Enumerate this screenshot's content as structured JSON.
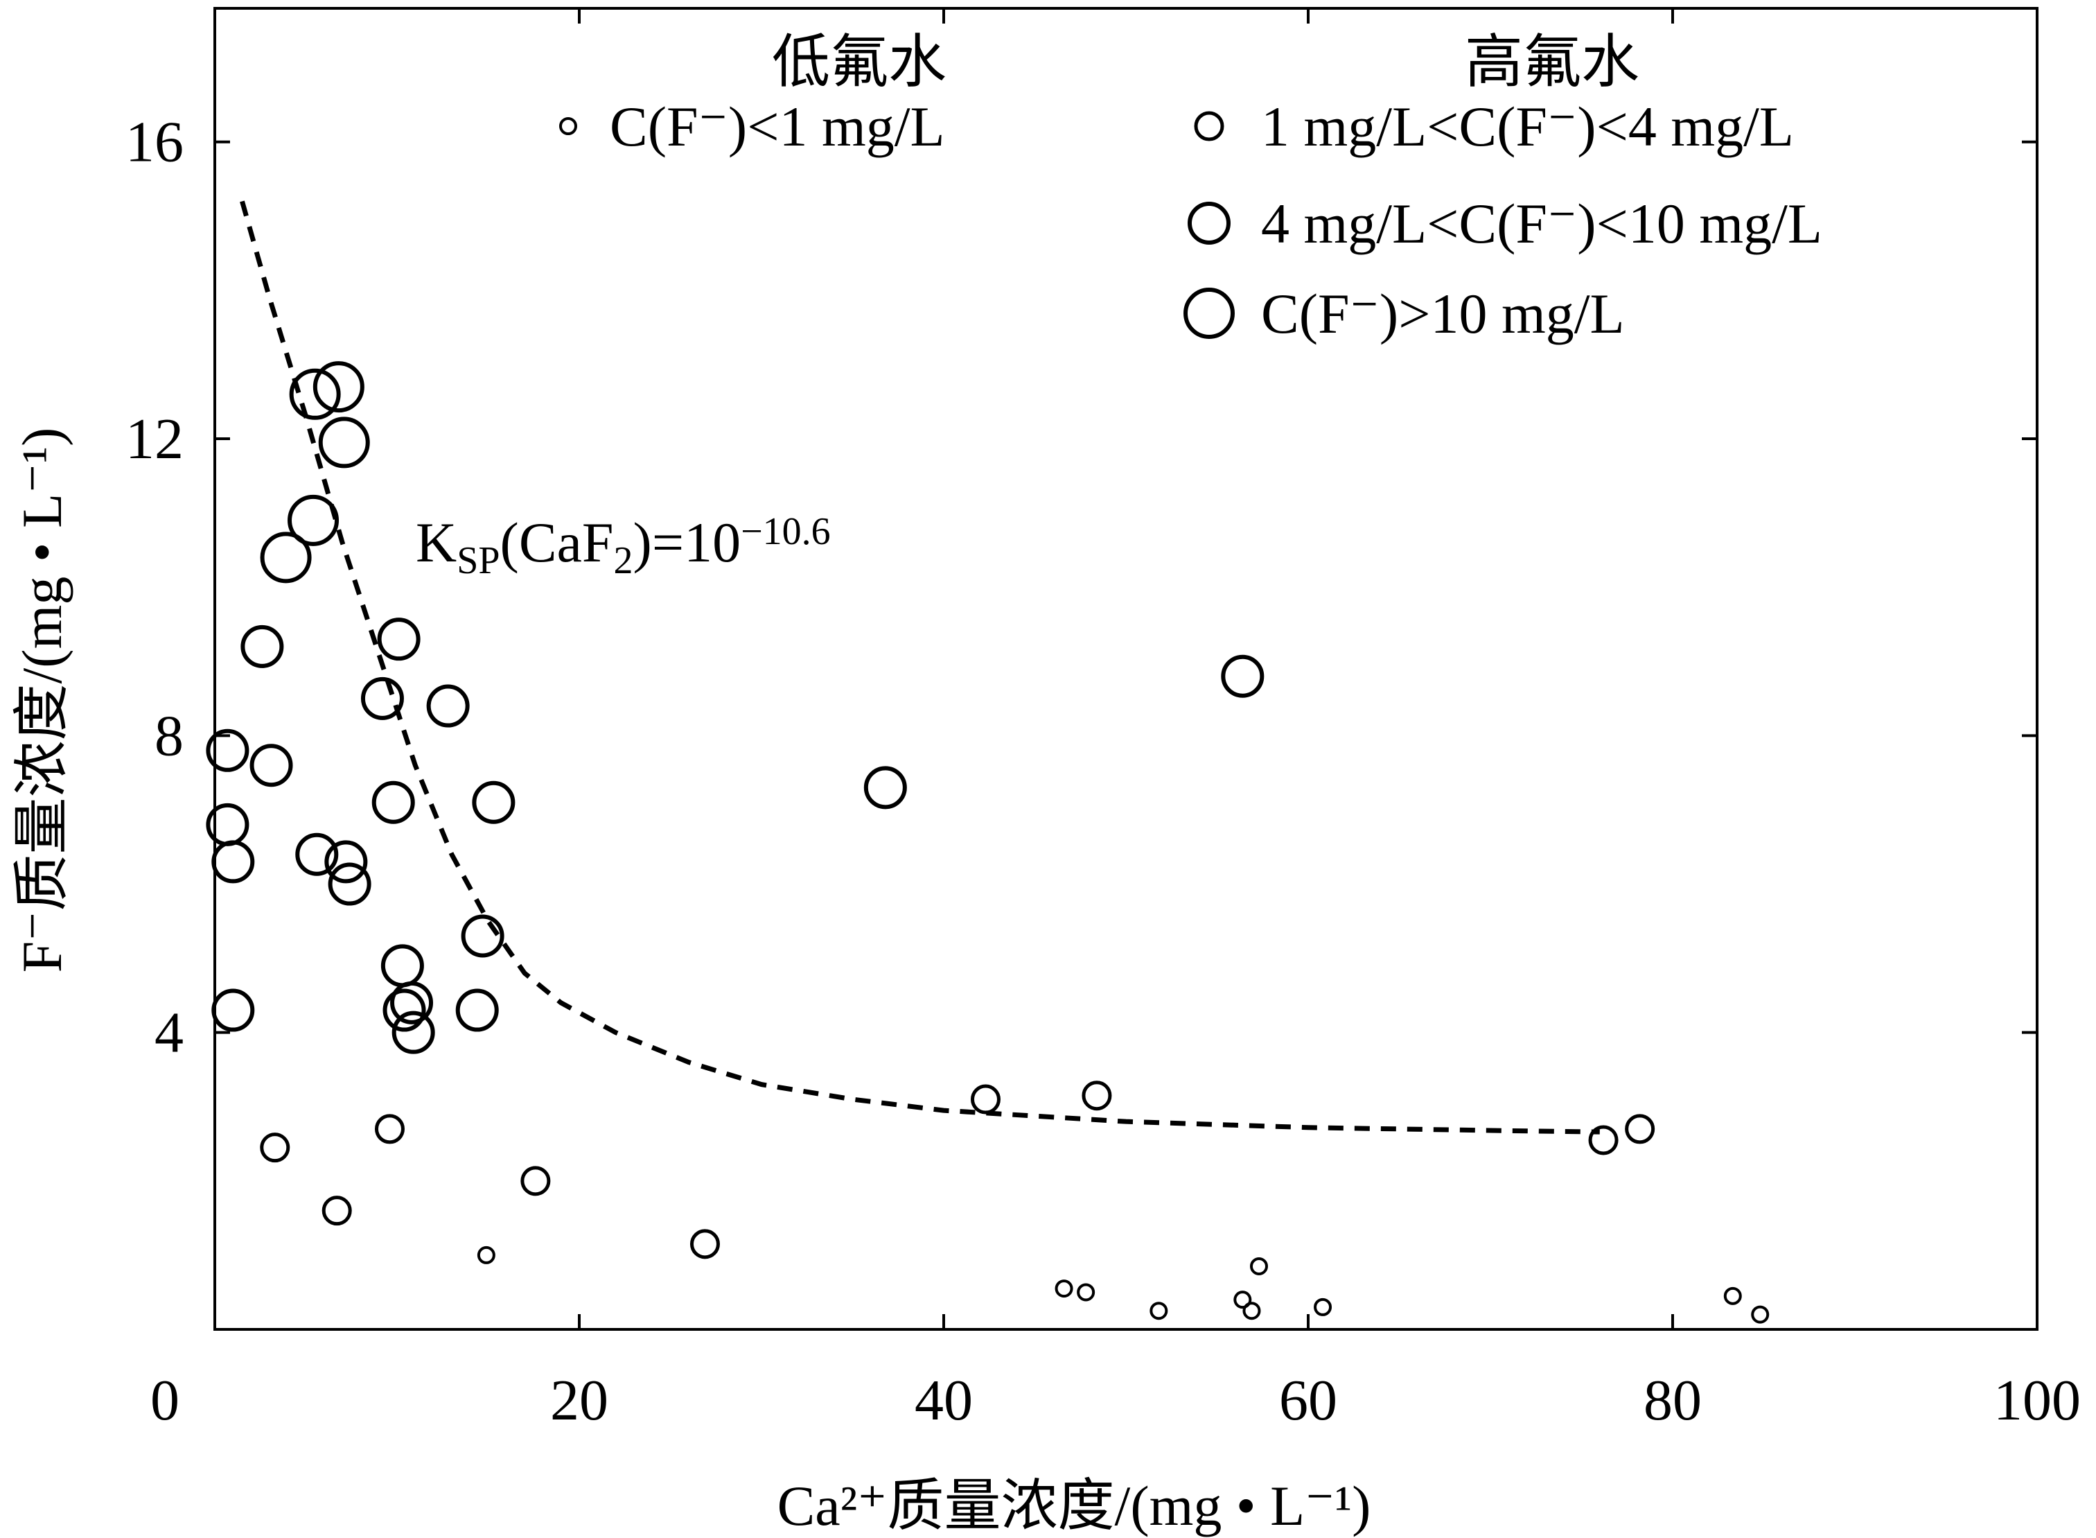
{
  "chart_data": {
    "type": "scatter",
    "xlabel": "Ca²⁺质量浓度/(mg • L⁻¹)",
    "ylabel": "F⁻质量浓度/(mg • L⁻¹)",
    "xlim": [
      0,
      100
    ],
    "ylim": [
      0,
      17.8
    ],
    "x_ticks": [
      "0",
      "20",
      "40",
      "60",
      "80",
      "100"
    ],
    "y_ticks": [
      "4",
      "8",
      "12",
      "16"
    ],
    "grid": false,
    "legend": {
      "placement": "top",
      "groups": [
        {
          "heading": "低氟水",
          "entries": [
            {
              "label": "C(F⁻)<1 mg/L",
              "class": 0
            }
          ]
        },
        {
          "heading": "高氟水",
          "entries": [
            {
              "label": "1 mg/L<C(F⁻)<4 mg/L",
              "class": 1
            },
            {
              "label": "4 mg/L<C(F⁻)<10 mg/L",
              "class": 2
            },
            {
              "label": "C(F⁻)>10 mg/L",
              "class": 3
            }
          ]
        }
      ]
    },
    "annotation": {
      "text_main": "K",
      "text_sub": "SP",
      "text_rest": "(CaF",
      "text_sub2": "2",
      "text_end": ")=10",
      "text_sup": "−10.6"
    },
    "curve": {
      "name": "KSP(CaF2)=10^-10.6",
      "style": "dashed",
      "x": [
        1.5,
        3,
        5,
        7,
        9,
        11,
        13,
        15,
        17,
        19,
        22,
        26,
        30,
        35,
        40,
        50,
        60,
        70,
        76
      ],
      "y": [
        15.2,
        13.9,
        12.3,
        10.6,
        9.1,
        7.6,
        6.4,
        5.5,
        4.8,
        4.4,
        4.0,
        3.6,
        3.3,
        3.1,
        2.95,
        2.8,
        2.72,
        2.68,
        2.66
      ]
    },
    "series": [
      {
        "class": 0,
        "x": [
          14.9,
          46.6,
          47.8,
          51.8,
          56.4,
          56.9,
          57.3,
          60.8,
          83.3,
          84.8
        ],
        "y": [
          1.0,
          0.55,
          0.5,
          0.25,
          0.4,
          0.25,
          0.85,
          0.3,
          0.45,
          0.2
        ]
      },
      {
        "class": 1,
        "x": [
          3.3,
          6.7,
          9.6,
          17.6,
          26.9,
          42.3,
          48.4,
          76.2,
          78.2
        ],
        "y": [
          2.45,
          1.6,
          2.7,
          2.0,
          1.15,
          3.1,
          3.15,
          2.55,
          2.7
        ]
      },
      {
        "class": 2,
        "x": [
          0.7,
          0.7,
          1.0,
          1.0,
          2.6,
          3.1,
          5.6,
          7.2,
          7.4,
          9.2,
          9.8,
          10.1,
          10.3,
          10.4,
          10.8,
          10.9,
          12.8,
          14.4,
          14.7,
          15.3,
          36.8,
          56.4
        ],
        "y": [
          7.8,
          6.8,
          6.3,
          4.3,
          9.2,
          7.6,
          6.4,
          6.3,
          6.0,
          8.5,
          7.1,
          9.3,
          4.9,
          4.3,
          4.4,
          4.0,
          8.4,
          4.3,
          5.3,
          7.1,
          7.3,
          8.8
        ]
      },
      {
        "class": 3,
        "x": [
          5.5,
          6.8,
          7.1,
          3.9,
          5.4
        ],
        "y": [
          12.6,
          12.7,
          11.95,
          10.4,
          10.9
        ]
      }
    ]
  }
}
